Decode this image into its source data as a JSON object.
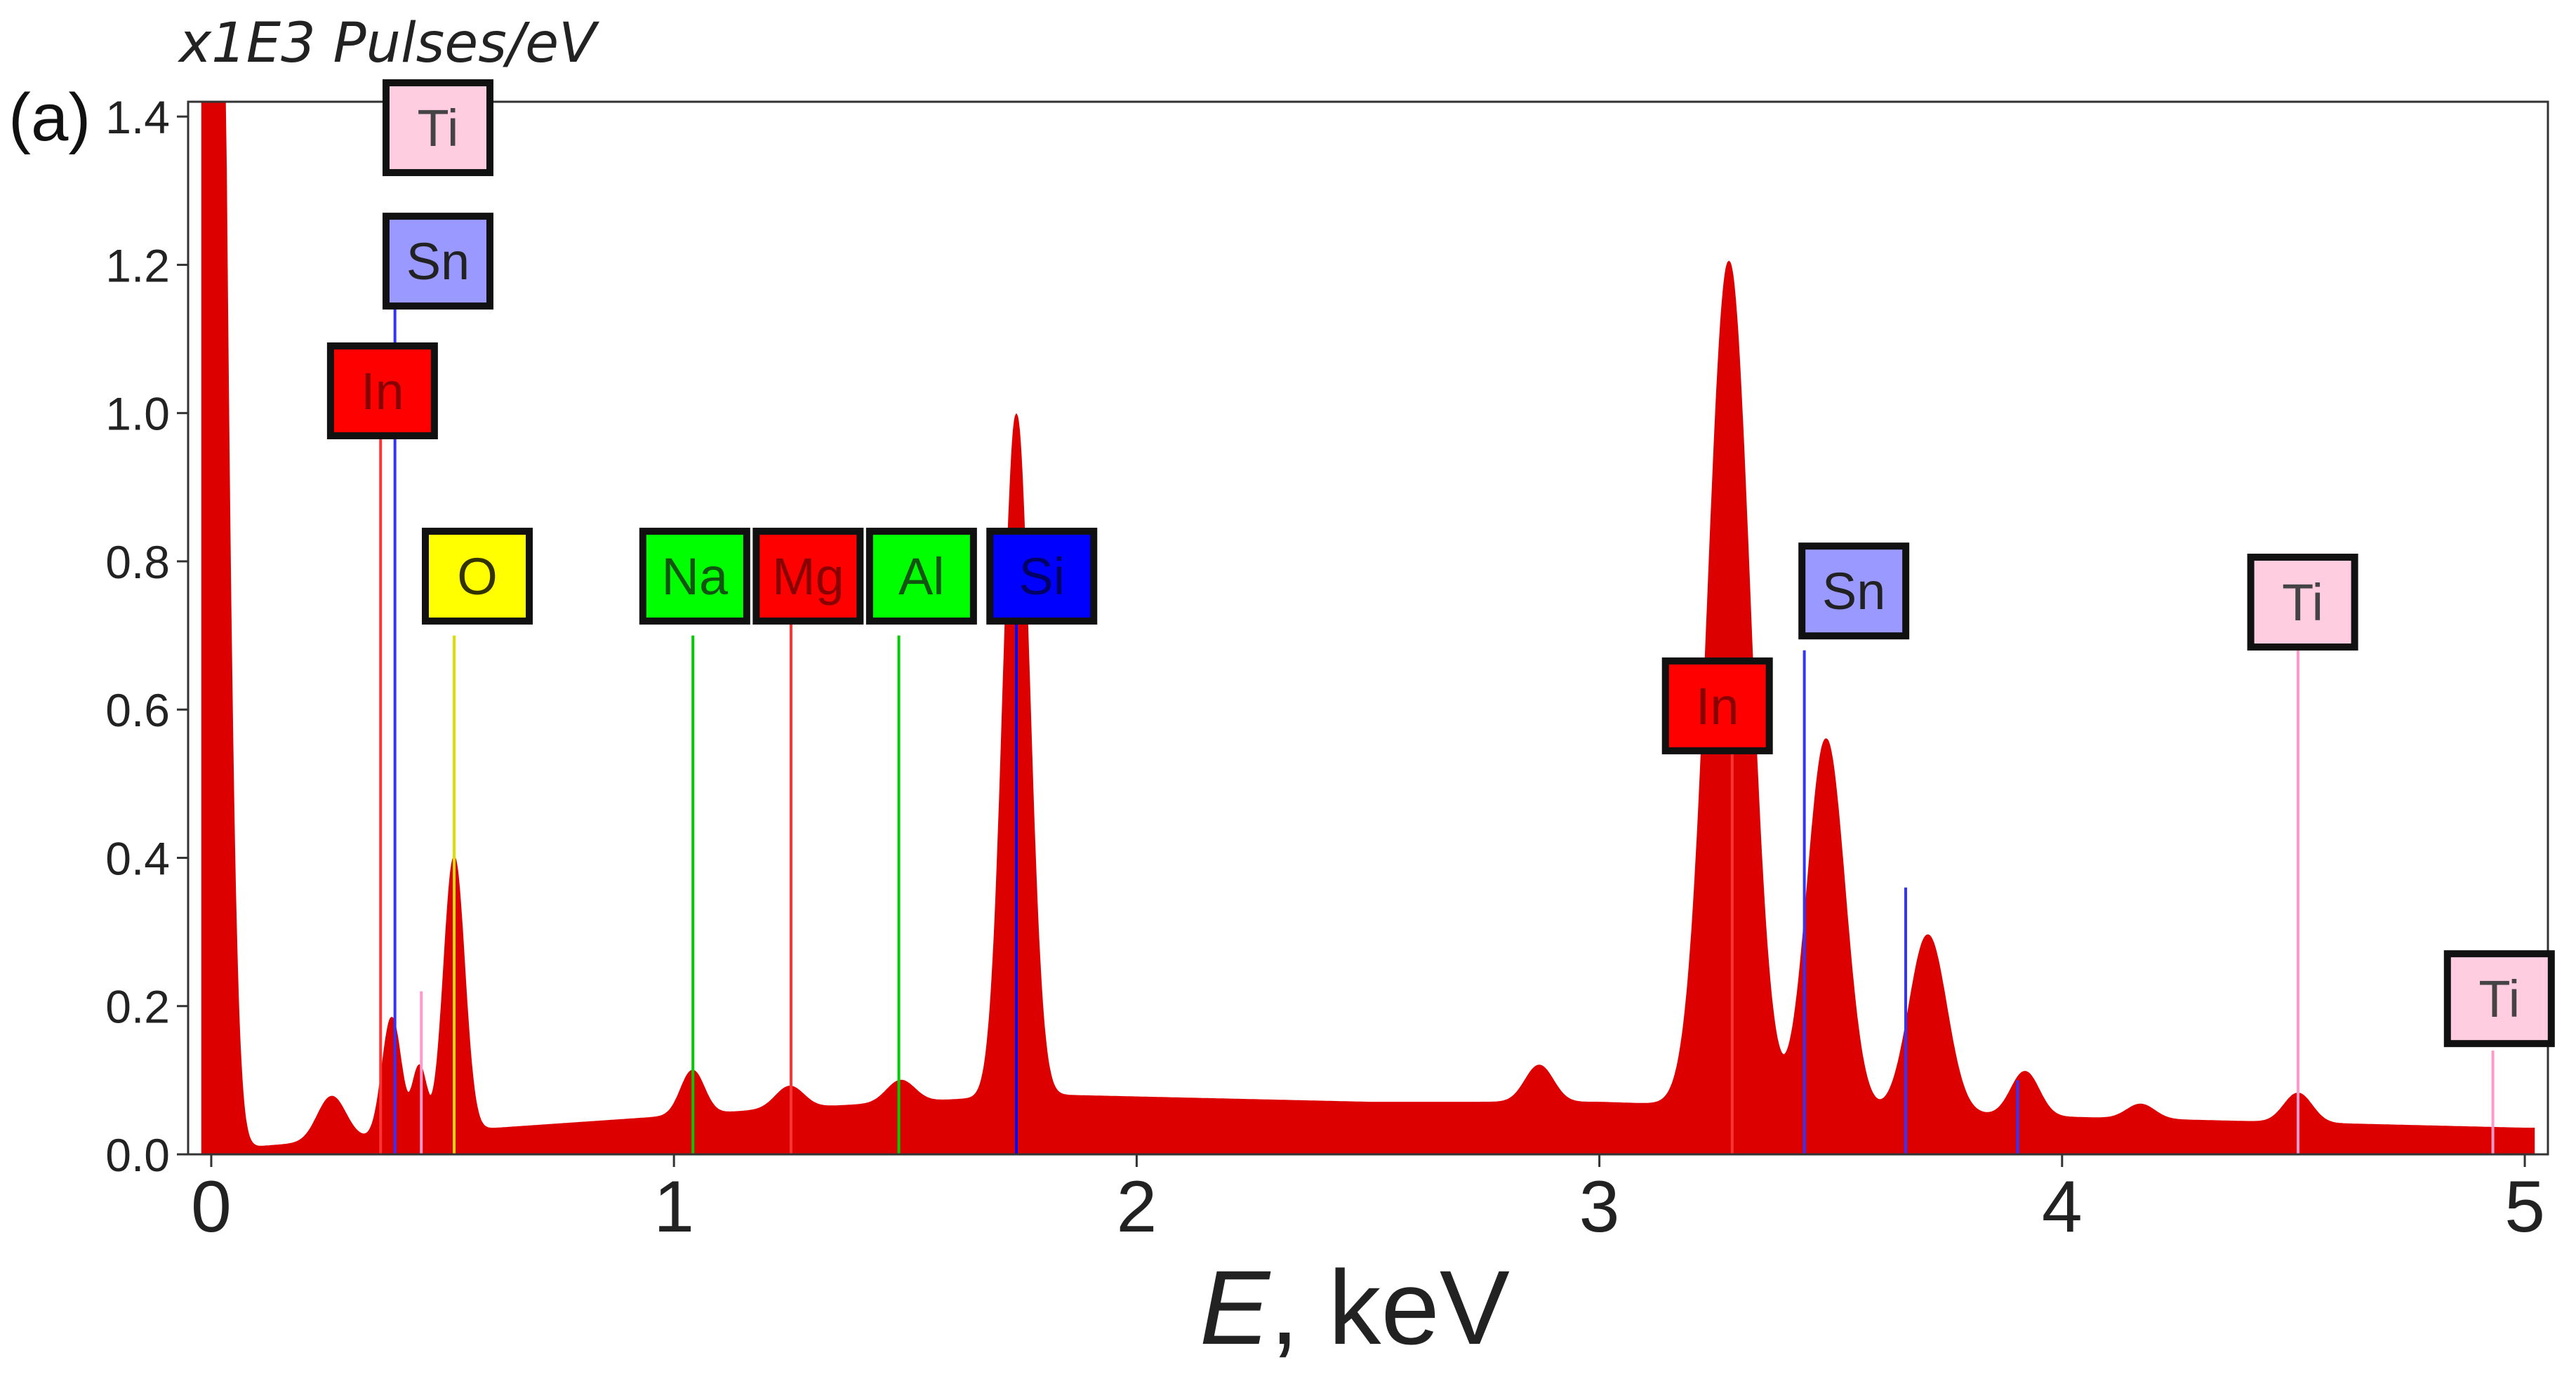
{
  "chart_data": {
    "type": "area",
    "panel_label": "(a)",
    "title": "",
    "ylabel": "x1E3 Pulses/eV",
    "xlabel_var": "E",
    "xlabel_unit": ", keV",
    "xlim": [
      -0.05,
      5.05
    ],
    "ylim": [
      0,
      1.42
    ],
    "xticks": [
      0,
      1,
      2,
      3,
      4,
      5
    ],
    "xtick_labels": [
      "0",
      "1",
      "2",
      "3",
      "4",
      "5"
    ],
    "yticks": [
      0,
      0.2,
      0.4,
      0.6,
      0.8,
      1.0,
      1.2,
      1.4
    ],
    "ytick_labels": [
      "0.0",
      "0.2",
      "0.4",
      "0.6",
      "0.8",
      "1.0",
      "1.2",
      "1.4"
    ],
    "grid": false,
    "legend": "none",
    "spectrum_color": "#dd0000",
    "baseline": [
      [
        0.1,
        0.01
      ],
      [
        0.5,
        0.03
      ],
      [
        1.2,
        0.06
      ],
      [
        1.8,
        0.08
      ],
      [
        2.5,
        0.07
      ],
      [
        3.0,
        0.07
      ],
      [
        4.0,
        0.05
      ],
      [
        5.0,
        0.035
      ]
    ],
    "peaks": [
      {
        "x": 0.0,
        "height": 3.0,
        "width": 0.025
      },
      {
        "x": 0.26,
        "height": 0.06,
        "width": 0.03
      },
      {
        "x": 0.39,
        "height": 0.16,
        "width": 0.02
      },
      {
        "x": 0.45,
        "height": 0.09,
        "width": 0.015
      },
      {
        "x": 0.525,
        "height": 0.37,
        "width": 0.022
      },
      {
        "x": 1.04,
        "height": 0.06,
        "width": 0.025
      },
      {
        "x": 1.25,
        "height": 0.03,
        "width": 0.03
      },
      {
        "x": 1.49,
        "height": 0.03,
        "width": 0.03
      },
      {
        "x": 1.74,
        "height": 0.92,
        "width": 0.028
      },
      {
        "x": 2.87,
        "height": 0.05,
        "width": 0.03
      },
      {
        "x": 3.28,
        "height": 1.14,
        "width": 0.045
      },
      {
        "x": 3.49,
        "height": 0.5,
        "width": 0.04
      },
      {
        "x": 3.71,
        "height": 0.24,
        "width": 0.04
      },
      {
        "x": 3.92,
        "height": 0.06,
        "width": 0.03
      },
      {
        "x": 4.17,
        "height": 0.02,
        "width": 0.03
      },
      {
        "x": 4.51,
        "height": 0.04,
        "width": 0.03
      }
    ],
    "lines": [
      {
        "x": 0.366,
        "height": 1.05,
        "color": "#ff3333"
      },
      {
        "x": 0.397,
        "height": 1.25,
        "color": "#3333ff"
      },
      {
        "x": 0.454,
        "height": 0.22,
        "color": "#ff99cc"
      },
      {
        "x": 0.525,
        "height": 0.7,
        "color": "#dddd00"
      },
      {
        "x": 1.041,
        "height": 0.7,
        "color": "#00cc00"
      },
      {
        "x": 1.253,
        "height": 0.72,
        "color": "#ff3333"
      },
      {
        "x": 1.486,
        "height": 0.7,
        "color": "#00cc00"
      },
      {
        "x": 1.74,
        "height": 0.78,
        "color": "#0000ff"
      },
      {
        "x": 3.287,
        "height": 0.6,
        "color": "#ff3333"
      },
      {
        "x": 3.443,
        "height": 0.68,
        "color": "#3333ff"
      },
      {
        "x": 3.662,
        "height": 0.36,
        "color": "#3333ff"
      },
      {
        "x": 3.904,
        "height": 0.1,
        "color": "#3333ff"
      },
      {
        "x": 4.51,
        "height": 0.68,
        "color": "#ff99cc"
      },
      {
        "x": 4.931,
        "height": 0.14,
        "color": "#ff99cc"
      }
    ],
    "element_labels": [
      {
        "text": "Ti",
        "x": 0.49,
        "y": 1.385,
        "fill": "#ffcce0",
        "text_color": "#444444"
      },
      {
        "text": "Sn",
        "x": 0.49,
        "y": 1.205,
        "fill": "#9999ff",
        "text_color": "#222222"
      },
      {
        "text": "In",
        "x": 0.37,
        "y": 1.03,
        "fill": "#ff0000",
        "text_color": "#880000"
      },
      {
        "text": "O",
        "x": 0.575,
        "y": 0.78,
        "fill": "#ffff00",
        "text_color": "#333300"
      },
      {
        "text": "Na",
        "x": 1.045,
        "y": 0.78,
        "fill": "#00ff00",
        "text_color": "#115511"
      },
      {
        "text": "Mg",
        "x": 1.29,
        "y": 0.78,
        "fill": "#ff0000",
        "text_color": "#880000"
      },
      {
        "text": "Al",
        "x": 1.535,
        "y": 0.78,
        "fill": "#00ff00",
        "text_color": "#115511"
      },
      {
        "text": "Si",
        "x": 1.795,
        "y": 0.78,
        "fill": "#0000ff",
        "text_color": "#000066"
      },
      {
        "text": "Sn",
        "x": 3.55,
        "y": 0.76,
        "fill": "#9999ff",
        "text_color": "#222222"
      },
      {
        "text": "In",
        "x": 3.255,
        "y": 0.605,
        "fill": "#ff0000",
        "text_color": "#880000"
      },
      {
        "text": "Ti",
        "x": 4.52,
        "y": 0.745,
        "fill": "#ffcce0",
        "text_color": "#444444"
      },
      {
        "text": "Ti",
        "x": 4.945,
        "y": 0.21,
        "fill": "#ffcce0",
        "text_color": "#444444"
      }
    ]
  }
}
